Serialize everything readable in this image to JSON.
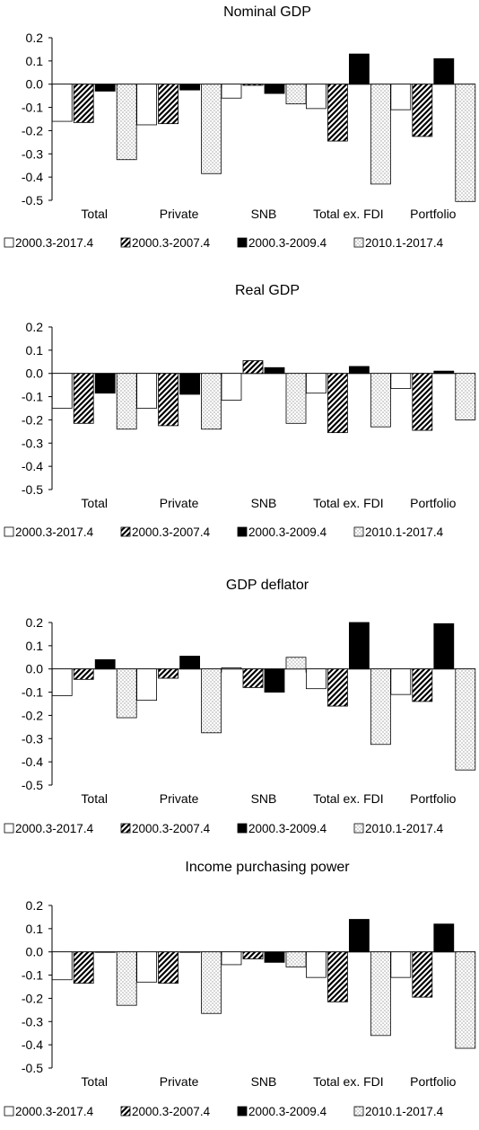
{
  "chart_data": [
    {
      "type": "bar",
      "title": "Nominal GDP",
      "categories": [
        "Total",
        "Private",
        "SNB",
        "Total ex. FDI",
        "Portfolio"
      ],
      "ylim": [
        -0.5,
        0.2
      ],
      "yticks": [
        "0.2",
        "0.1",
        "0.0",
        "-0.1",
        "-0.2",
        "-0.3",
        "-0.4",
        "-0.5"
      ],
      "legend_position": "bottom",
      "series": [
        {
          "name": "2000.3-2017.4",
          "pattern": "white",
          "values": [
            -0.16,
            -0.175,
            -0.06,
            -0.105,
            -0.11
          ]
        },
        {
          "name": "2000.3-2007.4",
          "pattern": "diagonal",
          "values": [
            -0.165,
            -0.17,
            -0.005,
            -0.245,
            -0.225
          ]
        },
        {
          "name": "2000.3-2009.4",
          "pattern": "black",
          "values": [
            -0.03,
            -0.025,
            -0.04,
            0.13,
            0.11
          ]
        },
        {
          "name": "2010.1-2017.4",
          "pattern": "dotted",
          "values": [
            -0.325,
            -0.385,
            -0.085,
            -0.43,
            -0.505
          ]
        }
      ]
    },
    {
      "type": "bar",
      "title": "Real GDP",
      "categories": [
        "Total",
        "Private",
        "SNB",
        "Total ex. FDI",
        "Portfolio"
      ],
      "ylim": [
        -0.5,
        0.2
      ],
      "yticks": [
        "0.2",
        "0.1",
        "0.0",
        "-0.1",
        "-0.2",
        "-0.3",
        "-0.4",
        "-0.5"
      ],
      "legend_position": "bottom",
      "series": [
        {
          "name": "2000.3-2017.4",
          "pattern": "white",
          "values": [
            -0.15,
            -0.15,
            -0.115,
            -0.085,
            -0.065
          ]
        },
        {
          "name": "2000.3-2007.4",
          "pattern": "diagonal",
          "values": [
            -0.215,
            -0.225,
            0.055,
            -0.255,
            -0.245
          ]
        },
        {
          "name": "2000.3-2009.4",
          "pattern": "black",
          "values": [
            -0.085,
            -0.09,
            0.025,
            0.03,
            0.01
          ]
        },
        {
          "name": "2010.1-2017.4",
          "pattern": "dotted",
          "values": [
            -0.24,
            -0.24,
            -0.215,
            -0.23,
            -0.2
          ]
        }
      ]
    },
    {
      "type": "bar",
      "title": "GDP deflator",
      "categories": [
        "Total",
        "Private",
        "SNB",
        "Total ex. FDI",
        "Portfolio"
      ],
      "ylim": [
        -0.5,
        0.2
      ],
      "yticks": [
        "0.2",
        "0.1",
        "0.0",
        "-0.1",
        "-0.2",
        "-0.3",
        "-0.4",
        "-0.5"
      ],
      "legend_position": "bottom",
      "series": [
        {
          "name": "2000.3-2017.4",
          "pattern": "white",
          "values": [
            -0.115,
            -0.135,
            0.005,
            -0.085,
            -0.11
          ]
        },
        {
          "name": "2000.3-2007.4",
          "pattern": "diagonal",
          "values": [
            -0.045,
            -0.04,
            -0.08,
            -0.16,
            -0.14
          ]
        },
        {
          "name": "2000.3-2009.4",
          "pattern": "black",
          "values": [
            0.04,
            0.055,
            -0.1,
            0.2,
            0.195
          ]
        },
        {
          "name": "2010.1-2017.4",
          "pattern": "dotted",
          "values": [
            -0.21,
            -0.275,
            0.05,
            -0.325,
            -0.435
          ]
        }
      ]
    },
    {
      "type": "bar",
      "title": "Income purchasing power",
      "categories": [
        "Total",
        "Private",
        "SNB",
        "Total ex. FDI",
        "Portfolio"
      ],
      "ylim": [
        -0.5,
        0.2
      ],
      "yticks": [
        "0.2",
        "0.1",
        "0.0",
        "-0.1",
        "-0.2",
        "-0.3",
        "-0.4",
        "-0.5"
      ],
      "legend_position": "bottom",
      "series": [
        {
          "name": "2000.3-2017.4",
          "pattern": "white",
          "values": [
            -0.12,
            -0.13,
            -0.055,
            -0.11,
            -0.11
          ]
        },
        {
          "name": "2000.3-2007.4",
          "pattern": "diagonal",
          "values": [
            -0.135,
            -0.135,
            -0.03,
            -0.215,
            -0.195
          ]
        },
        {
          "name": "2000.3-2009.4",
          "pattern": "black",
          "values": [
            0.0,
            0.0,
            -0.045,
            0.14,
            0.12
          ]
        },
        {
          "name": "2010.1-2017.4",
          "pattern": "dotted",
          "values": [
            -0.23,
            -0.265,
            -0.065,
            -0.36,
            -0.415
          ]
        }
      ]
    }
  ]
}
